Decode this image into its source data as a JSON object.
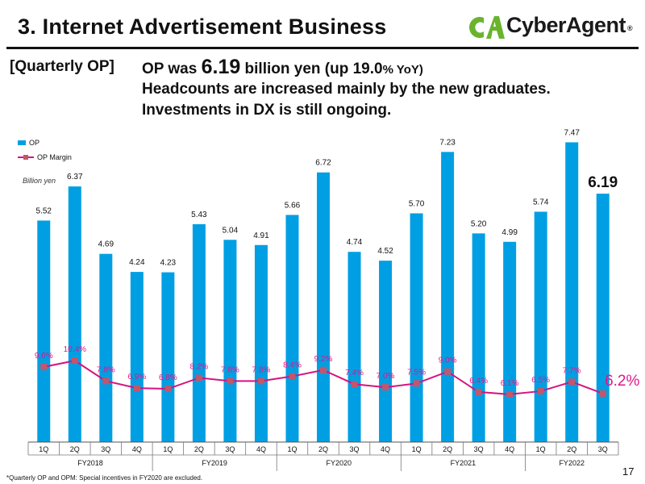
{
  "header": {
    "title": "3. Internet Advertisement Business",
    "logo_mark": "CA",
    "logo_text": "CyberAgent",
    "logo_reg": "®"
  },
  "summary": {
    "section_label": "[Quarterly OP]",
    "headline_prefix": "OP was ",
    "headline_value": "6.19",
    "headline_mid": " billion yen (up ",
    "headline_pct": "19.0",
    "headline_suffix": "% YoY)",
    "line2": "Headcounts are increased mainly by the new graduates.",
    "line3": "Investments in DX is still ongoing."
  },
  "chart_data": {
    "type": "bar",
    "unit_label": "Billion yen",
    "legend": [
      "OP",
      "OP Margin"
    ],
    "categories": [
      "1Q",
      "2Q",
      "3Q",
      "4Q",
      "1Q",
      "2Q",
      "3Q",
      "4Q",
      "1Q",
      "2Q",
      "3Q",
      "4Q",
      "1Q",
      "2Q",
      "3Q",
      "4Q",
      "1Q",
      "2Q",
      "3Q"
    ],
    "fiscal_years": [
      {
        "label": "FY2018",
        "quarters": 4
      },
      {
        "label": "FY2019",
        "quarters": 4
      },
      {
        "label": "FY2020",
        "quarters": 4
      },
      {
        "label": "FY2021",
        "quarters": 4
      },
      {
        "label": "FY2022",
        "quarters": 3
      }
    ],
    "series": [
      {
        "name": "OP",
        "kind": "bar",
        "values": [
          5.52,
          6.37,
          4.69,
          4.24,
          4.23,
          5.43,
          5.04,
          4.91,
          5.66,
          6.72,
          4.74,
          4.52,
          5.7,
          7.23,
          5.2,
          4.99,
          5.74,
          7.47,
          6.19
        ]
      },
      {
        "name": "OP Margin",
        "kind": "line",
        "values": [
          9.6,
          10.4,
          7.8,
          6.9,
          6.8,
          8.2,
          7.8,
          7.8,
          8.4,
          9.2,
          7.4,
          7.0,
          7.5,
          9.0,
          6.4,
          6.1,
          6.5,
          7.7,
          6.2
        ]
      }
    ],
    "margin_label_suffix": "%",
    "colors": {
      "bar": "#009fe3",
      "line": "#d6137f",
      "marker": "#c2566d",
      "label": "#e0168a"
    },
    "ylim_bars": [
      0,
      7.8
    ],
    "ylim_margin": [
      0,
      40
    ]
  },
  "footer": {
    "footnote": "*Quarterly OP and OPM: Special incentives in FY2020 are excluded.",
    "page": "17"
  }
}
